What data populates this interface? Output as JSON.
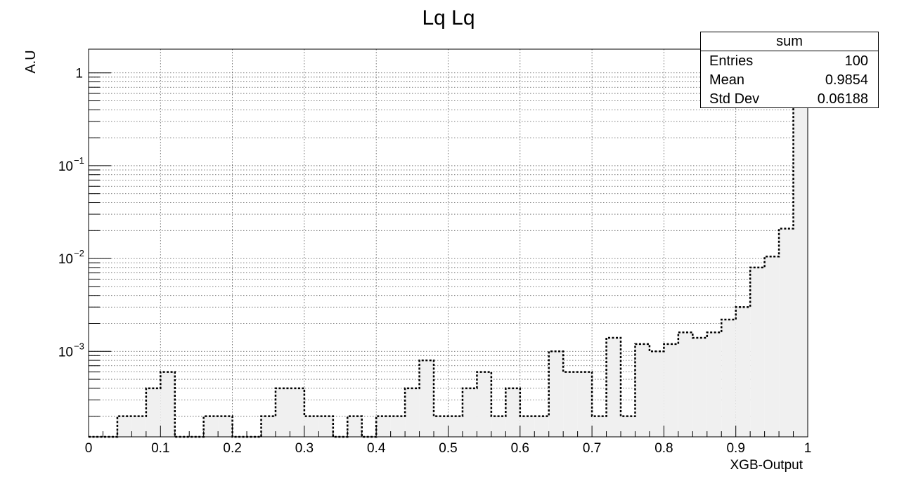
{
  "chart_data": {
    "type": "bar",
    "title": "Lq Lq",
    "xlabel": "XGB-Output",
    "ylabel": "A.U",
    "log_y": true,
    "grid": true,
    "xlim": [
      0,
      1
    ],
    "ylim": [
      0.00012,
      1.8
    ],
    "bin_width": 0.02,
    "x_ticks": [
      "0",
      "0.1",
      "0.2",
      "0.3",
      "0.4",
      "0.5",
      "0.6",
      "0.7",
      "0.8",
      "0.9",
      "1"
    ],
    "y_ticks": [
      {
        "value": 0.001,
        "base": "10",
        "exp": "−3"
      },
      {
        "value": 0.01,
        "base": "10",
        "exp": "−2"
      },
      {
        "value": 0.1,
        "base": "10",
        "exp": "−1"
      },
      {
        "value": 1,
        "base": "1",
        "exp": ""
      }
    ],
    "series": [
      {
        "name": "sum",
        "style": "dotted-outline-filled",
        "fill": "#f0f0f0",
        "line": "#000000",
        "bin_edges_start": 0.0,
        "values": [
          0,
          0,
          0.0002,
          0.0002,
          0.0004,
          0.0006,
          0,
          0,
          0.0002,
          0.0002,
          0,
          0,
          0.0002,
          0.0004,
          0.0004,
          0.0002,
          0.0002,
          0,
          0.0002,
          0,
          0.0002,
          0.0002,
          0.0004,
          0.0008,
          0.0002,
          0.0002,
          0.0004,
          0.0006,
          0.0002,
          0.0004,
          0.0002,
          0.0002,
          0.001,
          0.0006,
          0.0006,
          0.0002,
          0.0014,
          0.0002,
          0.0012,
          0.001,
          0.0012,
          0.0016,
          0.0014,
          0.0016,
          0.0022,
          0.003,
          0.008,
          0.0105,
          0.021,
          0.98
        ]
      }
    ]
  },
  "stats_box": {
    "title": "sum",
    "entries_label": "Entries",
    "entries_value": "100",
    "mean_label": "Mean",
    "mean_value": "0.9854",
    "stddev_label": "Std Dev",
    "stddev_value": "0.06188"
  }
}
